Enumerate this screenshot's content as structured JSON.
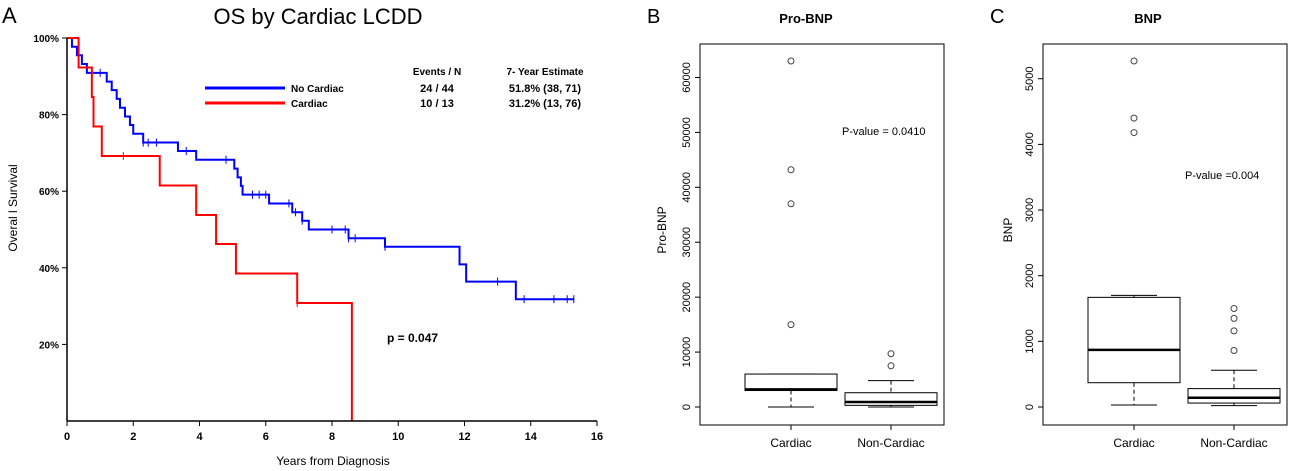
{
  "panels": {
    "A": {
      "letter": "A",
      "chart_data": {
        "type": "line",
        "title": "OS by Cardiac LCDD",
        "xlabel": "Years from Diagnosis",
        "ylabel": "Overal l Survival",
        "xlim": [
          0,
          16
        ],
        "ylim": [
          0,
          100
        ],
        "x_ticks": [
          "0",
          "2",
          "4",
          "6",
          "8",
          "10",
          "12",
          "14",
          "16"
        ],
        "y_ticks": [
          "20%",
          "40%",
          "60%",
          "80%",
          "100%"
        ],
        "legend": {
          "header_events": "Events / N",
          "header_estimate": "7- Year Estimate",
          "rows": [
            {
              "name": "No Cardiac",
              "events": "24 / 44",
              "estimate": "51.8% (38, 71)",
              "color": "#0000ff"
            },
            {
              "name": "Cardiac",
              "events": "10 / 13",
              "estimate": "31.2% (13, 76)",
              "color": "#ff0000"
            }
          ]
        },
        "annotation": "p = 0.047",
        "series": [
          {
            "name": "No Cardiac",
            "color": "#0000ff",
            "steps": [
              [
                0,
                100
              ],
              [
                0.15,
                97.7
              ],
              [
                0.3,
                95.5
              ],
              [
                0.45,
                93.2
              ],
              [
                0.6,
                90.9
              ],
              [
                1.0,
                90.9
              ],
              [
                1.2,
                88.6
              ],
              [
                1.35,
                86.4
              ],
              [
                1.5,
                84.1
              ],
              [
                1.6,
                81.8
              ],
              [
                1.75,
                79.5
              ],
              [
                1.9,
                77.3
              ],
              [
                2.0,
                75.0
              ],
              [
                2.1,
                75.0
              ],
              [
                2.3,
                72.7
              ],
              [
                2.45,
                72.7
              ],
              [
                2.7,
                72.7
              ],
              [
                3.3,
                72.7
              ],
              [
                3.35,
                70.5
              ],
              [
                3.6,
                70.5
              ],
              [
                3.9,
                68.2
              ],
              [
                4.8,
                68.2
              ],
              [
                5.05,
                65.9
              ],
              [
                5.15,
                63.6
              ],
              [
                5.25,
                61.4
              ],
              [
                5.3,
                59.1
              ],
              [
                6.0,
                59.1
              ],
              [
                6.1,
                56.8
              ],
              [
                6.7,
                56.8
              ],
              [
                6.8,
                54.5
              ],
              [
                7.1,
                52.3
              ],
              [
                7.3,
                50.0
              ],
              [
                8.4,
                50.0
              ],
              [
                8.5,
                47.7
              ],
              [
                9.5,
                47.7
              ],
              [
                9.6,
                45.5
              ],
              [
                11.8,
                45.5
              ],
              [
                11.85,
                40.9
              ],
              [
                12.0,
                40.9
              ],
              [
                12.05,
                36.4
              ],
              [
                13.5,
                36.4
              ],
              [
                13.55,
                31.8
              ],
              [
                15.3,
                31.8
              ]
            ],
            "censor_x": [
              1.0,
              2.3,
              2.45,
              2.7,
              3.6,
              4.8,
              5.6,
              5.8,
              6.0,
              6.7,
              6.9,
              7.1,
              8.0,
              8.4,
              8.5,
              8.7,
              9.6,
              13.0,
              13.8,
              14.7,
              15.1,
              15.3
            ]
          },
          {
            "name": "Cardiac",
            "color": "#ff0000",
            "steps": [
              [
                0,
                100
              ],
              [
                0.35,
                92.3
              ],
              [
                0.75,
                84.6
              ],
              [
                0.8,
                76.9
              ],
              [
                1.05,
                69.2
              ],
              [
                2.8,
                61.5
              ],
              [
                3.9,
                53.8
              ],
              [
                4.5,
                46.2
              ],
              [
                5.1,
                38.5
              ],
              [
                6.95,
                30.8
              ],
              [
                8.6,
                30.8
              ],
              [
                8.6,
                0
              ]
            ],
            "censor_x": [
              1.7,
              6.95
            ]
          }
        ]
      }
    },
    "B": {
      "letter": "B",
      "chart_data": {
        "type": "box",
        "title": "Pro-BNP",
        "ylabel": "Pro-BNP",
        "ylim": [
          0,
          63000
        ],
        "y_ticks": [
          "0",
          "10000",
          "20000",
          "30000",
          "40000",
          "50000",
          "60000"
        ],
        "categories": [
          "Cardiac",
          "Non-Cardiac"
        ],
        "annotation": "P-value = 0.0410",
        "boxes": [
          {
            "name": "Cardiac",
            "whisker_low": 0,
            "q1": 3000,
            "median": 3200,
            "q3": 6000,
            "whisker_high": 6000,
            "outliers": [
              15000,
              37000,
              43200,
              63000
            ]
          },
          {
            "name": "Non-Cardiac",
            "whisker_low": 0,
            "q1": 300,
            "median": 900,
            "q3": 2600,
            "whisker_high": 4800,
            "outliers": [
              7500,
              9700
            ]
          }
        ]
      }
    },
    "C": {
      "letter": "C",
      "chart_data": {
        "type": "box",
        "title": "BNP",
        "ylabel": "BNP",
        "ylim": [
          0,
          5270
        ],
        "y_ticks": [
          "0",
          "1000",
          "2000",
          "3000",
          "4000",
          "5000"
        ],
        "categories": [
          "Cardiac",
          "Non-Cardiac"
        ],
        "annotation": "P-value =0.004",
        "boxes": [
          {
            "name": "Cardiac",
            "whisker_low": 30,
            "q1": 370,
            "median": 870,
            "q3": 1670,
            "whisker_high": 1700,
            "outliers": [
              4180,
              4400,
              5270
            ]
          },
          {
            "name": "Non-Cardiac",
            "whisker_low": 20,
            "q1": 60,
            "median": 140,
            "q3": 280,
            "whisker_high": 560,
            "outliers": [
              860,
              1160,
              1350,
              1500
            ]
          }
        ]
      }
    }
  }
}
